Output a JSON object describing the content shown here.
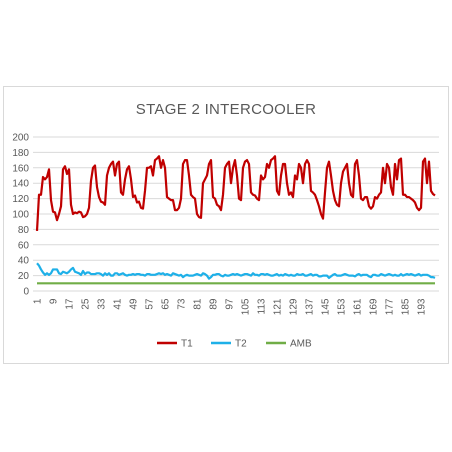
{
  "chart_data": {
    "type": "line",
    "title": "STAGE 2 INTERCOOLER",
    "xlabel": "",
    "ylabel": "",
    "ylim": [
      0,
      200
    ],
    "yticks": [
      0,
      20,
      40,
      60,
      80,
      100,
      120,
      140,
      160,
      180,
      200
    ],
    "x": [
      1,
      2,
      3,
      4,
      5,
      6,
      7,
      8,
      9,
      10,
      11,
      12,
      13,
      14,
      15,
      16,
      17,
      18,
      19,
      20,
      21,
      22,
      23,
      24,
      25,
      26,
      27,
      28,
      29,
      30,
      31,
      32,
      33,
      34,
      35,
      36,
      37,
      38,
      39,
      40,
      41,
      42,
      43,
      44,
      45,
      46,
      47,
      48,
      49,
      50,
      51,
      52,
      53,
      54,
      55,
      56,
      57,
      58,
      59,
      60,
      61,
      62,
      63,
      64,
      65,
      66,
      67,
      68,
      69,
      70,
      71,
      72,
      73,
      74,
      75,
      76,
      77,
      78,
      79,
      80,
      81,
      82,
      83,
      84,
      85,
      86,
      87,
      88,
      89,
      90,
      91,
      92,
      93,
      94,
      95,
      96,
      97,
      98,
      99,
      100,
      101,
      102,
      103,
      104,
      105,
      106,
      107,
      108,
      109,
      110,
      111,
      112,
      113,
      114,
      115,
      116,
      117,
      118,
      119,
      120,
      121,
      122,
      123,
      124,
      125,
      126,
      127,
      128,
      129,
      130,
      131,
      132,
      133,
      134,
      135,
      136,
      137,
      138,
      139,
      140,
      141,
      142,
      143,
      144,
      145,
      146,
      147,
      148,
      149,
      150,
      151,
      152,
      153,
      154,
      155,
      156,
      157,
      158,
      159,
      160,
      161,
      162,
      163,
      164,
      165,
      166,
      167,
      168,
      169,
      170,
      171,
      172,
      173,
      174,
      175,
      176,
      177,
      178,
      179,
      180,
      181,
      182,
      183,
      184,
      185,
      186,
      187,
      188,
      189,
      190,
      191,
      192,
      193,
      194,
      195,
      196,
      197,
      198,
      199,
      200
    ],
    "xtick_labels": [
      "1",
      "9",
      "17",
      "25",
      "33",
      "41",
      "49",
      "57",
      "65",
      "73",
      "81",
      "89",
      "97",
      "105",
      "113",
      "121",
      "129",
      "137",
      "145",
      "153",
      "161",
      "169",
      "177",
      "185",
      "193"
    ],
    "grid": true,
    "legend_position": "bottom",
    "series": [
      {
        "name": "T1",
        "color": "#c00000",
        "values": [
          78,
          125,
          125,
          148,
          145,
          148,
          158,
          118,
          103,
          102,
          92,
          100,
          110,
          158,
          162,
          152,
          158,
          112,
          100,
          102,
          101,
          103,
          102,
          96,
          97,
          100,
          108,
          143,
          160,
          163,
          135,
          122,
          116,
          115,
          112,
          150,
          160,
          165,
          168,
          150,
          165,
          168,
          128,
          125,
          145,
          158,
          162,
          145,
          122,
          124,
          115,
          116,
          108,
          107,
          130,
          160,
          160,
          162,
          150,
          170,
          172,
          175,
          160,
          170,
          160,
          122,
          120,
          118,
          118,
          105,
          105,
          108,
          120,
          165,
          170,
          170,
          150,
          125,
          122,
          120,
          100,
          96,
          95,
          140,
          145,
          150,
          165,
          170,
          122,
          120,
          112,
          110,
          105,
          125,
          160,
          165,
          168,
          140,
          160,
          170,
          150,
          120,
          118,
          160,
          168,
          170,
          165,
          128,
          125,
          124,
          120,
          118,
          150,
          145,
          148,
          165,
          160,
          170,
          172,
          175,
          130,
          125,
          150,
          165,
          165,
          140,
          125,
          128,
          122,
          150,
          145,
          165,
          160,
          140,
          165,
          170,
          165,
          130,
          128,
          125,
          118,
          110,
          100,
          94,
          128,
          160,
          168,
          150,
          130,
          118,
          112,
          110,
          140,
          155,
          160,
          165,
          140,
          125,
          122,
          165,
          170,
          150,
          120,
          118,
          122,
          122,
          110,
          107,
          110,
          122,
          120,
          125,
          128,
          160,
          140,
          165,
          160,
          135,
          125,
          165,
          145,
          170,
          172,
          125,
          125,
          122,
          122,
          120,
          118,
          115,
          108,
          105,
          108,
          168,
          172,
          140,
          168,
          130,
          126,
          124
        ]
      },
      {
        "name": "T2",
        "color": "#1eb0e8",
        "values": [
          36,
          33,
          28,
          24,
          21,
          23,
          21,
          23,
          28,
          28,
          28,
          23,
          22,
          25,
          24,
          23,
          25,
          28,
          30,
          25,
          24,
          23,
          21,
          26,
          22,
          24,
          24,
          22,
          22,
          22,
          23,
          23,
          22,
          20,
          23,
          21,
          23,
          20,
          20,
          23,
          23,
          21,
          22,
          23,
          21,
          20,
          21,
          21,
          22,
          21,
          22,
          22,
          21,
          21,
          20,
          22,
          22,
          21,
          21,
          21,
          22,
          23,
          22,
          23,
          21,
          22,
          21,
          20,
          23,
          22,
          21,
          20,
          21,
          18,
          20,
          21,
          20,
          20,
          20,
          21,
          22,
          21,
          20,
          23,
          22,
          20,
          16,
          18,
          21,
          21,
          22,
          22,
          20,
          19,
          21,
          20,
          20,
          21,
          22,
          21,
          22,
          21,
          20,
          21,
          22,
          22,
          21,
          20,
          23,
          21,
          21,
          20,
          22,
          22,
          21,
          22,
          21,
          20,
          20,
          21,
          22,
          20,
          21,
          20,
          22,
          21,
          20,
          21,
          20,
          20,
          22,
          21,
          21,
          22,
          20,
          20,
          21,
          22,
          20,
          21,
          21,
          19,
          19,
          20,
          20,
          20,
          17,
          19,
          21,
          22,
          20,
          20,
          20,
          21,
          22,
          21,
          20,
          20,
          20,
          19,
          21,
          22,
          20,
          21,
          21,
          21,
          19,
          18,
          21,
          21,
          20,
          20,
          22,
          21,
          20,
          21,
          22,
          21,
          20,
          21,
          20,
          20,
          22,
          20,
          21,
          22,
          21,
          22,
          21,
          20,
          21,
          22,
          20,
          21,
          21,
          21,
          20,
          18,
          18,
          17
        ]
      },
      {
        "name": "AMB",
        "color": "#70ad47",
        "values": [
          10,
          10,
          10,
          10,
          10,
          10,
          10,
          10,
          10,
          10,
          10,
          10,
          10,
          10,
          10,
          10,
          10,
          10,
          10,
          10,
          10,
          10,
          10,
          10,
          10,
          10,
          10,
          10,
          10,
          10,
          10,
          10,
          10,
          10,
          10,
          10,
          10,
          10,
          10,
          10,
          10,
          10,
          10,
          10,
          10,
          10,
          10,
          10,
          10,
          10,
          10,
          10,
          10,
          10,
          10,
          10,
          10,
          10,
          10,
          10,
          10,
          10,
          10,
          10,
          10,
          10,
          10,
          10,
          10,
          10,
          10,
          10,
          10,
          10,
          10,
          10,
          10,
          10,
          10,
          10,
          10,
          10,
          10,
          10,
          10,
          10,
          10,
          10,
          10,
          10,
          10,
          10,
          10,
          10,
          10,
          10,
          10,
          10,
          10,
          10,
          10,
          10,
          10,
          10,
          10,
          10,
          10,
          10,
          10,
          10,
          10,
          10,
          10,
          10,
          10,
          10,
          10,
          10,
          10,
          10,
          10,
          10,
          10,
          10,
          10,
          10,
          10,
          10,
          10,
          10,
          10,
          10,
          10,
          10,
          10,
          10,
          10,
          10,
          10,
          10,
          10,
          10,
          10,
          10,
          10,
          10,
          10,
          10,
          10,
          10,
          10,
          10,
          10,
          10,
          10,
          10,
          10,
          10,
          10,
          10,
          10,
          10,
          10,
          10,
          10,
          10,
          10,
          10,
          10,
          10,
          10,
          10,
          10,
          10,
          10,
          10,
          10,
          10,
          10,
          10,
          10,
          10,
          10,
          10,
          10,
          10,
          10,
          10,
          10,
          10,
          10,
          10,
          10,
          10,
          10,
          10,
          10,
          10,
          10,
          10
        ]
      }
    ]
  }
}
